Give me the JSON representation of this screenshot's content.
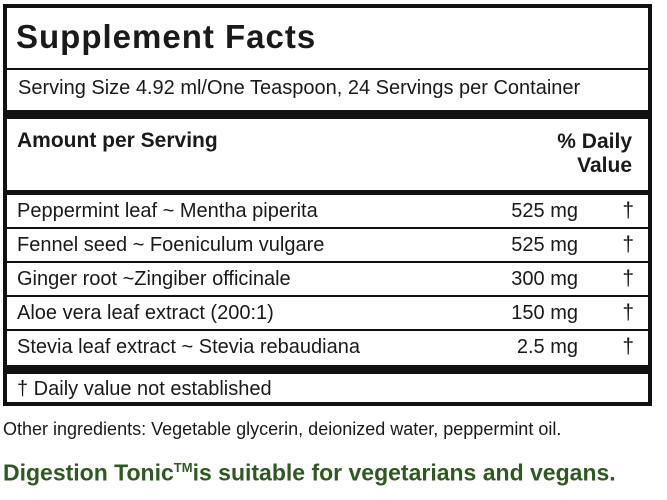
{
  "label": {
    "title": "Supplement Facts",
    "serving": "Serving Size 4.92 ml/One Teaspoon, 24 Servings per Container",
    "amount_header": "Amount per Serving",
    "dv_header_line1": "% Daily",
    "dv_header_line2": "Value",
    "rows": [
      {
        "name": "Peppermint leaf ~ Mentha piperita",
        "amount": "525 mg",
        "dv": "†"
      },
      {
        "name": "Fennel seed ~ Foeniculum vulgare",
        "amount": "525 mg",
        "dv": "†"
      },
      {
        "name": "Ginger root ~Zingiber officinale",
        "amount": "300 mg",
        "dv": "†"
      },
      {
        "name": "Aloe vera leaf extract (200:1)",
        "amount": "150 mg",
        "dv": "†"
      },
      {
        "name": "Stevia leaf extract ~ Stevia rebaudiana",
        "amount": "2.5 mg",
        "dv": "†"
      }
    ],
    "footnote": "† Daily value not established"
  },
  "other_ingredients": "Other ingredients: Vegetable glycerin, deionized water, peppermint oil.",
  "tagline": {
    "product": "Digestion Tonic",
    "mark": "TM",
    "rest": "is suitable for vegetarians and vegans."
  },
  "colors": {
    "tagline": "#2e5a22",
    "border": "#111111"
  }
}
